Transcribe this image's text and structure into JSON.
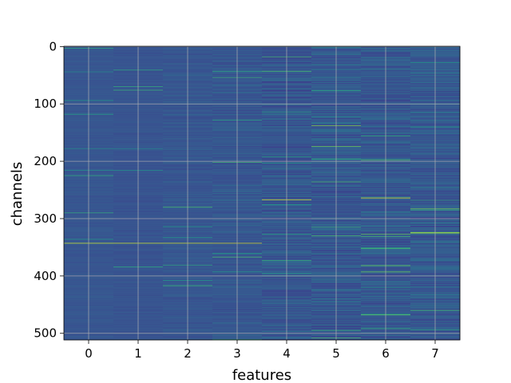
{
  "chart_data": {
    "type": "heatmap",
    "title": "",
    "xlabel": "features",
    "ylabel": "channels",
    "x_categories": [
      0,
      1,
      2,
      3,
      4,
      5,
      6,
      7
    ],
    "xticks": [
      "0",
      "1",
      "2",
      "3",
      "4",
      "5",
      "6",
      "7"
    ],
    "yticks": [
      "0",
      "100",
      "200",
      "300",
      "400",
      "500"
    ],
    "xlim": [
      -0.5,
      7.5
    ],
    "ylim": [
      511.5,
      -0.5
    ],
    "y_axis_inverted": true,
    "n_rows": 512,
    "n_cols": 8,
    "grid": true,
    "colormap": "viridis",
    "colormap_low": "#3b3f8c",
    "colormap_high": "#fde725",
    "background_color": "#3d3f8d",
    "grid_color": "#b0b0b0",
    "column_variation": [
      0.1,
      0.12,
      0.16,
      0.22,
      0.34,
      0.36,
      0.34,
      0.3
    ],
    "column_base": [
      0.22,
      0.2,
      0.22,
      0.22,
      0.2,
      0.22,
      0.22,
      0.24
    ],
    "bright_features": [
      {
        "channel": 343,
        "feature_from": 0,
        "feature_to": 3,
        "value": 0.95
      },
      {
        "channel": 325,
        "feature_from": 7,
        "feature_to": 7,
        "value": 0.95
      },
      {
        "channel": 267,
        "feature_from": 4,
        "feature_to": 4,
        "value": 0.97
      },
      {
        "channel": 264,
        "feature_from": 6,
        "feature_to": 6,
        "value": 0.97
      },
      {
        "channel": 236,
        "feature_from": 5,
        "feature_to": 5,
        "value": 0.75
      },
      {
        "channel": 138,
        "feature_from": 5,
        "feature_to": 5,
        "value": 0.85
      },
      {
        "channel": 216,
        "feature_from": 0,
        "feature_to": 1,
        "value": 0.55
      },
      {
        "channel": 178,
        "feature_from": 0,
        "feature_to": 1,
        "value": 0.5
      },
      {
        "channel": 44,
        "feature_from": 0,
        "feature_to": 0,
        "value": 0.5
      },
      {
        "channel": 128,
        "feature_from": 3,
        "feature_to": 3,
        "value": 0.65
      },
      {
        "channel": 203,
        "feature_from": 4,
        "feature_to": 4,
        "value": 0.6
      },
      {
        "channel": 28,
        "feature_from": 7,
        "feature_to": 7,
        "value": 0.6
      },
      {
        "channel": 140,
        "feature_from": 7,
        "feature_to": 7,
        "value": 0.6
      },
      {
        "channel": 466,
        "feature_from": 6,
        "feature_to": 6,
        "value": 0.6
      },
      {
        "channel": 395,
        "feature_from": 4,
        "feature_to": 4,
        "value": 0.6
      },
      {
        "channel": 420,
        "feature_from": 6,
        "feature_to": 6,
        "value": 0.6
      }
    ]
  }
}
